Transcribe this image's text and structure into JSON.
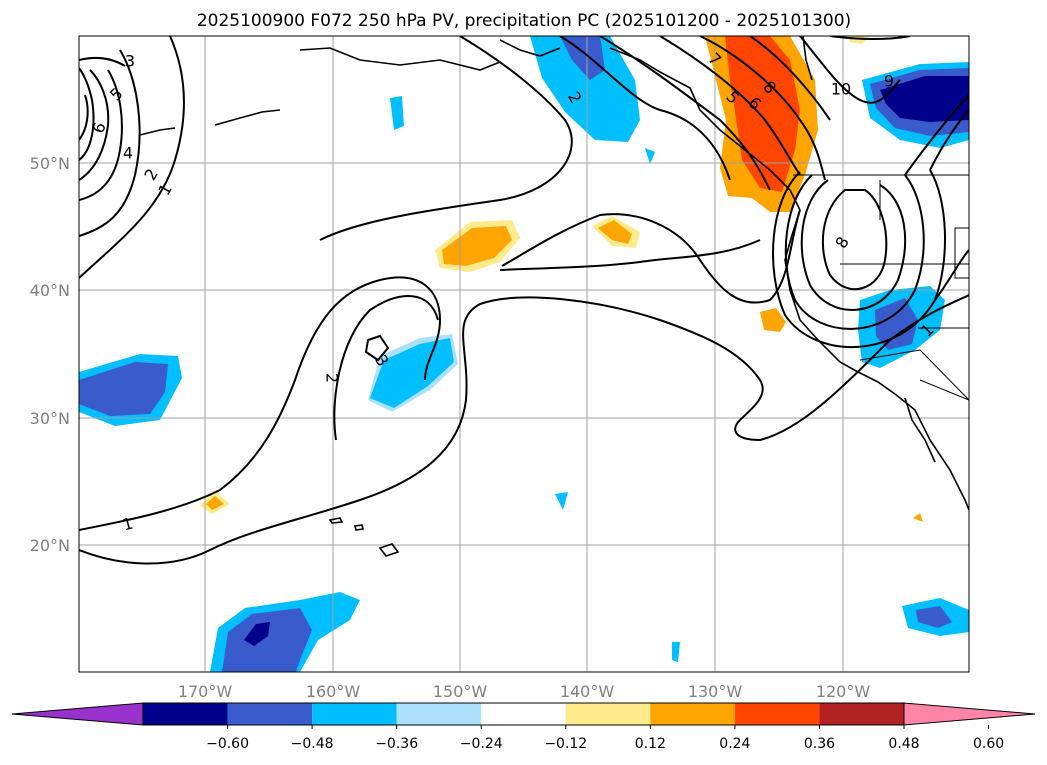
{
  "title": "2025100900 F072 250 hPa PV, precipitation PC (2025101200 - 2025101300)",
  "lat_labels": [
    "50°N",
    "40°N",
    "30°N",
    "20°N"
  ],
  "lon_labels": [
    "170°W",
    "160°W",
    "150°W",
    "140°W",
    "130°W",
    "120°W"
  ],
  "colorbar": {
    "colors": [
      "#9932CC",
      "#00008B",
      "#3A5BCB",
      "#00BFFF",
      "#ADE0FA",
      "#FFFFFF",
      "#FFEB8C",
      "#FFA500",
      "#FF4500",
      "#B22222",
      "#FF85A8"
    ],
    "labels": [
      "−0.60",
      "−0.48",
      "−0.36",
      "−0.24",
      "−0.12",
      "0.12",
      "0.24",
      "0.36",
      "0.48",
      "0.60"
    ]
  },
  "contour_labels": [
    {
      "text": "3"
    },
    {
      "text": "5"
    },
    {
      "text": "6"
    },
    {
      "text": "4"
    },
    {
      "text": "2"
    },
    {
      "text": "1"
    },
    {
      "text": "2"
    },
    {
      "text": "3"
    },
    {
      "text": "2"
    },
    {
      "text": "1"
    },
    {
      "text": "7"
    },
    {
      "text": "8"
    },
    {
      "text": "5"
    },
    {
      "text": "6"
    },
    {
      "text": "10"
    },
    {
      "text": "9"
    },
    {
      "text": "8"
    },
    {
      "text": "1"
    }
  ]
}
